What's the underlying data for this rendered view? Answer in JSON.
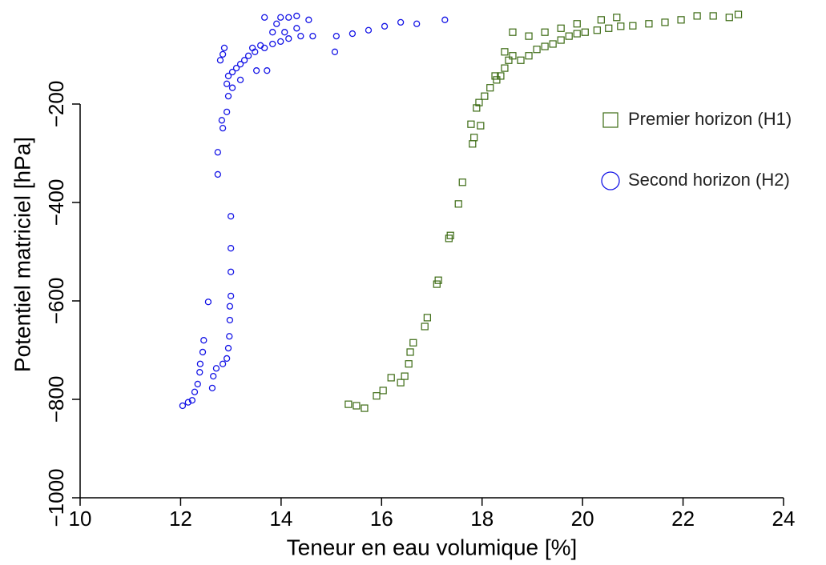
{
  "chart_data": {
    "type": "scatter",
    "xlabel": "Teneur en eau volumique [%]",
    "ylabel": "Potentiel matriciel [hPa]",
    "xlim": [
      10,
      24
    ],
    "xticks": [
      10,
      12,
      14,
      16,
      18,
      20,
      22,
      24
    ],
    "ylim": [
      -1000,
      0
    ],
    "yticks": [
      {
        "value": -1000,
        "label": "−1000"
      },
      {
        "value": -800,
        "label": "−800"
      },
      {
        "value": -600,
        "label": "−600"
      },
      {
        "value": -400,
        "label": "−400"
      },
      {
        "value": -200,
        "label": "−200"
      }
    ],
    "legend": "upper right",
    "series": [
      {
        "name": "Premier horizon (H1)",
        "color": "#3b6a12",
        "marker": "square",
        "x": [
          15.34,
          15.5,
          15.66,
          15.9,
          16.03,
          16.19,
          16.38,
          16.46,
          16.54,
          16.57,
          16.63,
          16.86,
          16.91,
          17.1,
          17.13,
          17.34,
          17.37,
          17.53,
          17.61,
          17.81,
          17.84,
          17.78,
          17.97,
          17.89,
          17.94,
          18.05,
          18.16,
          18.29,
          18.37,
          18.45,
          18.53,
          18.61,
          18.77,
          18.93,
          19.09,
          19.25,
          19.41,
          19.57,
          19.73,
          19.89,
          20.05,
          20.29,
          20.52,
          20.76,
          21.0,
          21.32,
          21.64,
          21.96,
          22.28,
          22.6,
          22.92,
          23.1,
          18.61,
          18.93,
          19.25,
          19.57,
          19.89,
          20.37,
          20.68,
          18.45,
          18.26
        ],
        "values": [
          -810,
          -813,
          -818,
          -793,
          -782,
          -756,
          -766,
          -753,
          -728,
          -704,
          -685,
          -652,
          -634,
          -566,
          -558,
          -473,
          -467,
          -403,
          -359,
          -281,
          -268,
          -241,
          -244,
          -208,
          -197,
          -184,
          -167,
          -151,
          -143,
          -127,
          -111,
          -102,
          -111,
          -102,
          -89,
          -83,
          -78,
          -70,
          -62,
          -57,
          -54,
          -50,
          -46,
          -42,
          -41,
          -37,
          -34,
          -29,
          -21,
          -21,
          -24,
          -18,
          -54,
          -62,
          -54,
          -46,
          -37,
          -29,
          -24,
          -94,
          -143
        ]
      },
      {
        "name": "Second horizon (H2)",
        "color": "#1414e6",
        "marker": "circle",
        "x": [
          12.04,
          12.15,
          12.23,
          12.28,
          12.34,
          12.38,
          12.39,
          12.44,
          12.46,
          12.55,
          12.63,
          12.65,
          12.71,
          12.84,
          12.92,
          12.95,
          12.97,
          12.98,
          12.98,
          13.0,
          13.0,
          13.0,
          13.0,
          12.74,
          12.74,
          12.84,
          12.82,
          12.92,
          12.95,
          12.92,
          12.95,
          13.03,
          13.11,
          13.19,
          13.27,
          13.35,
          13.48,
          13.67,
          13.83,
          13.99,
          14.15,
          14.39,
          14.63,
          12.79,
          12.84,
          12.87,
          13.03,
          13.19,
          13.51,
          13.72,
          13.43,
          13.59,
          13.83,
          13.91,
          13.99,
          13.67,
          14.15,
          14.31,
          14.55,
          14.31,
          14.07,
          15.07,
          15.1,
          15.42,
          15.74,
          16.06,
          16.38,
          16.7,
          17.26
        ],
        "values": [
          -813,
          -806,
          -802,
          -785,
          -769,
          -745,
          -728,
          -704,
          -680,
          -602,
          -777,
          -753,
          -737,
          -728,
          -717,
          -696,
          -672,
          -639,
          -611,
          -590,
          -541,
          -493,
          -428,
          -343,
          -298,
          -249,
          -233,
          -216,
          -184,
          -159,
          -143,
          -135,
          -127,
          -119,
          -111,
          -102,
          -94,
          -86,
          -78,
          -73,
          -67,
          -62,
          -62,
          -111,
          -99,
          -86,
          -167,
          -151,
          -132,
          -132,
          -86,
          -81,
          -54,
          -37,
          -24,
          -24,
          -24,
          -21,
          -29,
          -46,
          -54,
          -94,
          -62,
          -57,
          -50,
          -42,
          -34,
          -37,
          -29
        ]
      }
    ]
  }
}
